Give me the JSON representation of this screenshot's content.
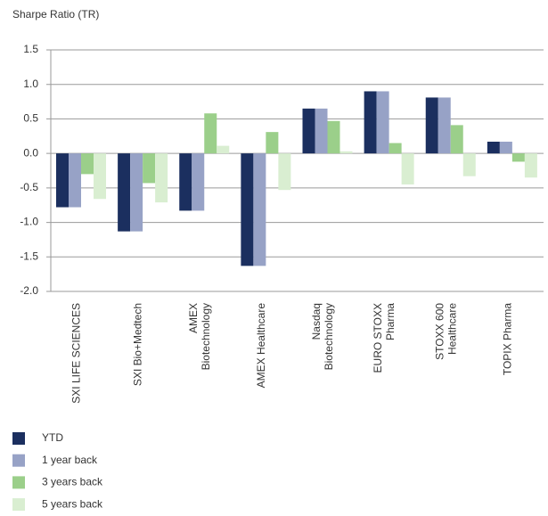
{
  "chart_data": {
    "type": "bar",
    "title": "Sharpe Ratio (TR)",
    "categories": [
      "SXI LIFE SCIENCES",
      "SXI Bio+Medtech",
      "AMEX\nBiotechnology",
      "AMEX Healthcare",
      "Nasdaq\nBiotechnology",
      "EURO STOXX\nPharma",
      "STOXX 600\nHealthcare",
      "TOPIX Pharma"
    ],
    "series": [
      {
        "name": "YTD",
        "color": "#1b2f5f",
        "values": [
          -0.78,
          -1.13,
          -0.83,
          -1.63,
          0.65,
          0.9,
          0.81,
          0.17
        ]
      },
      {
        "name": "1 year back",
        "color": "#97a2c6",
        "values": [
          -0.78,
          -1.13,
          -0.83,
          -1.63,
          0.65,
          0.9,
          0.81,
          0.17
        ]
      },
      {
        "name": "3 years back",
        "color": "#9bcf8a",
        "values": [
          -0.3,
          -0.43,
          0.58,
          0.31,
          0.47,
          0.15,
          0.41,
          -0.12
        ]
      },
      {
        "name": "5 years back",
        "color": "#d9eed1",
        "values": [
          -0.66,
          -0.71,
          0.11,
          -0.53,
          0.03,
          -0.45,
          -0.33,
          -0.35
        ]
      }
    ],
    "ylim": [
      -2.0,
      1.5
    ],
    "yticks": [
      1.5,
      {
        "value": 1.0,
        "label": "1.0"
      },
      0.5,
      {
        "value": 0.0,
        "label": "0.0"
      },
      -0.5,
      {
        "value": -1.0,
        "label": "-1.0"
      },
      -1.5,
      {
        "value": -2.0,
        "label": "-2.0"
      }
    ],
    "grid": true,
    "legend": "bottom-left"
  }
}
